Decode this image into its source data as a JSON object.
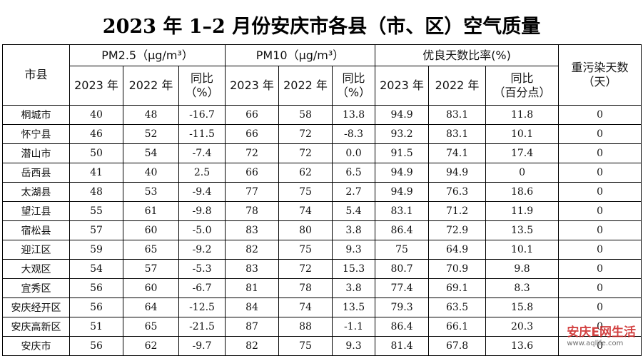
{
  "header": {
    "title": "2023 年 1–2 月份安庆市各县（市、区）空气质量"
  },
  "table": {
    "group_headers": [
      "市县",
      "PM2.5（μg/m³）",
      "PM10（μg/m³）",
      "优良天数比率(%)",
      "重污染天数\n（天）"
    ],
    "sub_headers": [
      "2023 年",
      "2022 年",
      "同比\n（%）",
      "2023 年",
      "2022 年",
      "同比\n（%）",
      "2023 年",
      "2022 年",
      "同比\n（百分点）"
    ],
    "rows": [
      [
        "桐城市",
        "40",
        "48",
        "-16.7",
        "66",
        "58",
        "13.8",
        "94.9",
        "83.1",
        "11.8",
        "0"
      ],
      [
        "怀宁县",
        "46",
        "52",
        "-11.5",
        "66",
        "72",
        "-8.3",
        "93.2",
        "83.1",
        "10.1",
        "0"
      ],
      [
        "潜山市",
        "50",
        "54",
        "-7.4",
        "72",
        "72",
        "0.0",
        "91.5",
        "74.1",
        "17.4",
        "0"
      ],
      [
        "岳西县",
        "41",
        "40",
        "2.5",
        "66",
        "62",
        "6.5",
        "94.9",
        "94.9",
        "0",
        "0"
      ],
      [
        "太湖县",
        "48",
        "53",
        "-9.4",
        "77",
        "75",
        "2.7",
        "94.9",
        "76.3",
        "18.6",
        "0"
      ],
      [
        "望江县",
        "55",
        "61",
        "-9.8",
        "78",
        "74",
        "5.4",
        "83.1",
        "71.2",
        "11.9",
        "0"
      ],
      [
        "宿松县",
        "57",
        "60",
        "-5.0",
        "83",
        "80",
        "3.8",
        "86.4",
        "72.9",
        "13.5",
        "0"
      ],
      [
        "迎江区",
        "59",
        "65",
        "-9.2",
        "82",
        "75",
        "9.3",
        "75",
        "64.9",
        "10.1",
        "0"
      ],
      [
        "大观区",
        "54",
        "57",
        "-5.3",
        "83",
        "72",
        "15.3",
        "80.7",
        "70.9",
        "9.8",
        "0"
      ],
      [
        "宜秀区",
        "56",
        "60",
        "-6.7",
        "81",
        "78",
        "3.8",
        "77.4",
        "69.1",
        "8.3",
        "0"
      ],
      [
        "安庆经开区",
        "56",
        "64",
        "-12.5",
        "84",
        "74",
        "13.5",
        "79.3",
        "63.5",
        "15.8",
        "0"
      ],
      [
        "安庆高新区",
        "51",
        "65",
        "-21.5",
        "87",
        "88",
        "-1.1",
        "86.4",
        "66.1",
        "20.3",
        "0"
      ],
      [
        "安庆市",
        "56",
        "62",
        "-9.7",
        "82",
        "75",
        "9.3",
        "81.4",
        "67.8",
        "13.6",
        "0"
      ]
    ]
  },
  "watermark": {
    "brand": "安庆E网生活",
    "url": "www.aqlife.com"
  }
}
